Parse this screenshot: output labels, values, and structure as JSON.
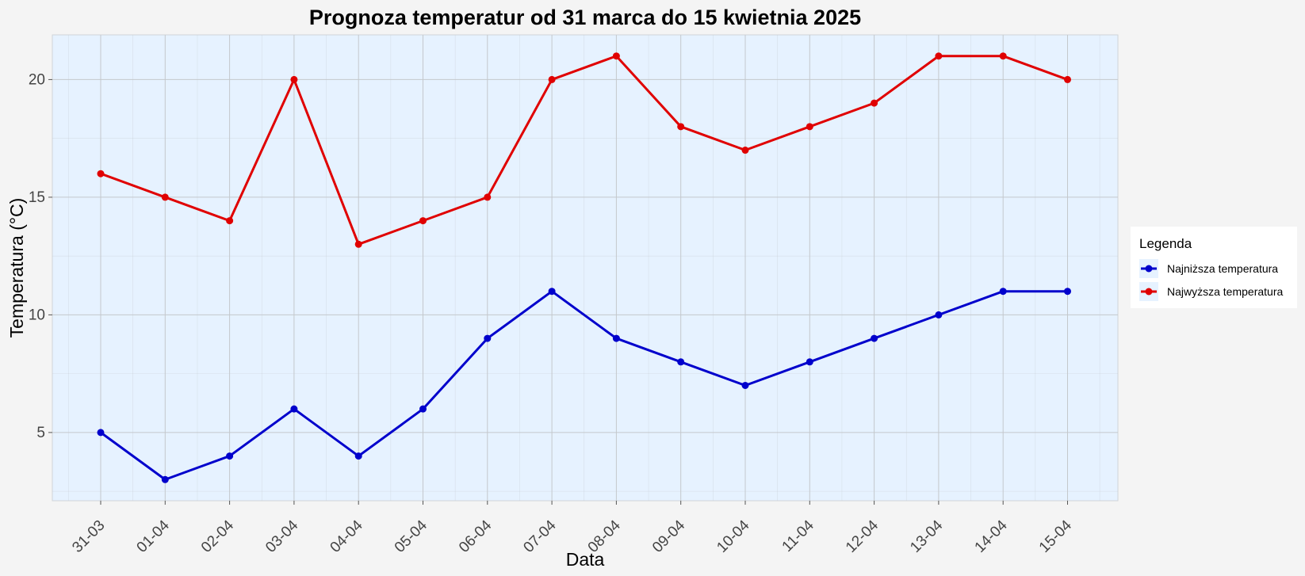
{
  "chart_data": {
    "type": "line",
    "title": "Prognoza temperatur od 31 marca do 15 kwietnia 2025",
    "xlabel": "Data",
    "ylabel": "Temperatura (°C)",
    "categories": [
      "31-03",
      "01-04",
      "02-04",
      "03-04",
      "04-04",
      "05-04",
      "06-04",
      "07-04",
      "08-04",
      "09-04",
      "10-04",
      "11-04",
      "12-04",
      "13-04",
      "14-04",
      "15-04"
    ],
    "ylim": [
      2.1,
      21.9
    ],
    "yticks": [
      "5",
      "10",
      "15",
      "20"
    ],
    "grid": true,
    "legend": {
      "title": "Legenda",
      "placement": "right"
    },
    "series": [
      {
        "name": "Najniższa temperatura",
        "color": "#0000cc",
        "values": [
          5,
          3,
          4,
          6,
          4,
          6,
          9,
          11,
          9,
          8,
          7,
          8,
          9,
          10,
          11,
          11
        ]
      },
      {
        "name": "Najwyższa temperatura",
        "color": "#e00000",
        "values": [
          16,
          15,
          14,
          20,
          13,
          14,
          15,
          20,
          21,
          18,
          17,
          18,
          19,
          21,
          21,
          20
        ]
      }
    ],
    "panel_color": "#e6f2ff",
    "grid_color": "#c4c8cc"
  }
}
